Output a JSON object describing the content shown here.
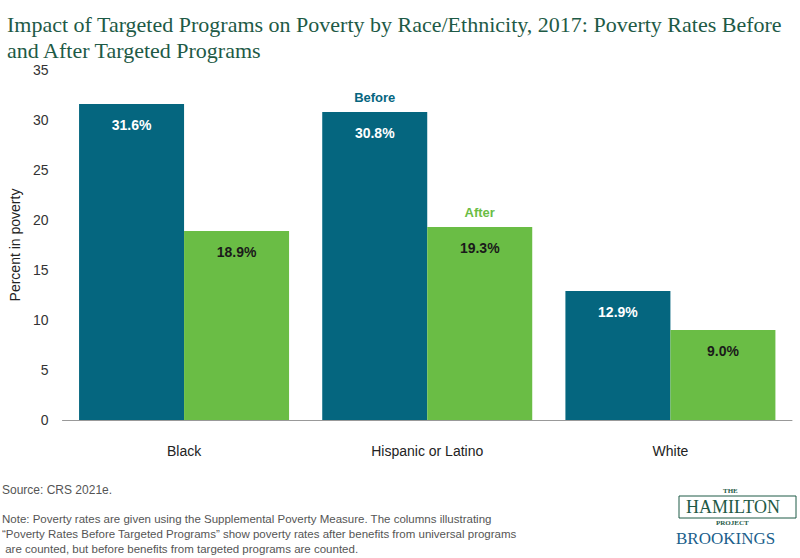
{
  "chart_data": {
    "type": "bar",
    "title": "Impact of Targeted Programs on Poverty by Race/Ethnicity, 2017: Poverty Rates Before and After Targeted Programs",
    "y_label": "Percent in poverty",
    "categories": [
      "Black",
      "Hispanic or Latino",
      "White"
    ],
    "series": [
      {
        "name": "Before",
        "color": "#05667f",
        "values": [
          31.6,
          30.8,
          12.9
        ],
        "value_labels": [
          "31.6%",
          "30.8%",
          "12.9%"
        ]
      },
      {
        "name": "After",
        "color": "#6abd45",
        "values": [
          18.9,
          19.3,
          9.0
        ],
        "value_labels": [
          "18.9%",
          "19.3%",
          "9.0%"
        ]
      }
    ],
    "ylim": [
      0,
      35
    ],
    "yticks": [
      0,
      5,
      10,
      15,
      20,
      25,
      30,
      35
    ],
    "grid": false,
    "data_labels": true,
    "source": "Source: CRS 2021e.",
    "note": "Note: Poverty rates are given using the Supplemental Poverty Measure. The columns illustrating “Poverty Rates Before Targeted Programs” show poverty rates after benefits from universal programs are counted, but before benefits from targeted programs are counted.",
    "logo": [
      "THE",
      "HAMILTON",
      "PROJECT",
      "BROOKINGS"
    ]
  }
}
